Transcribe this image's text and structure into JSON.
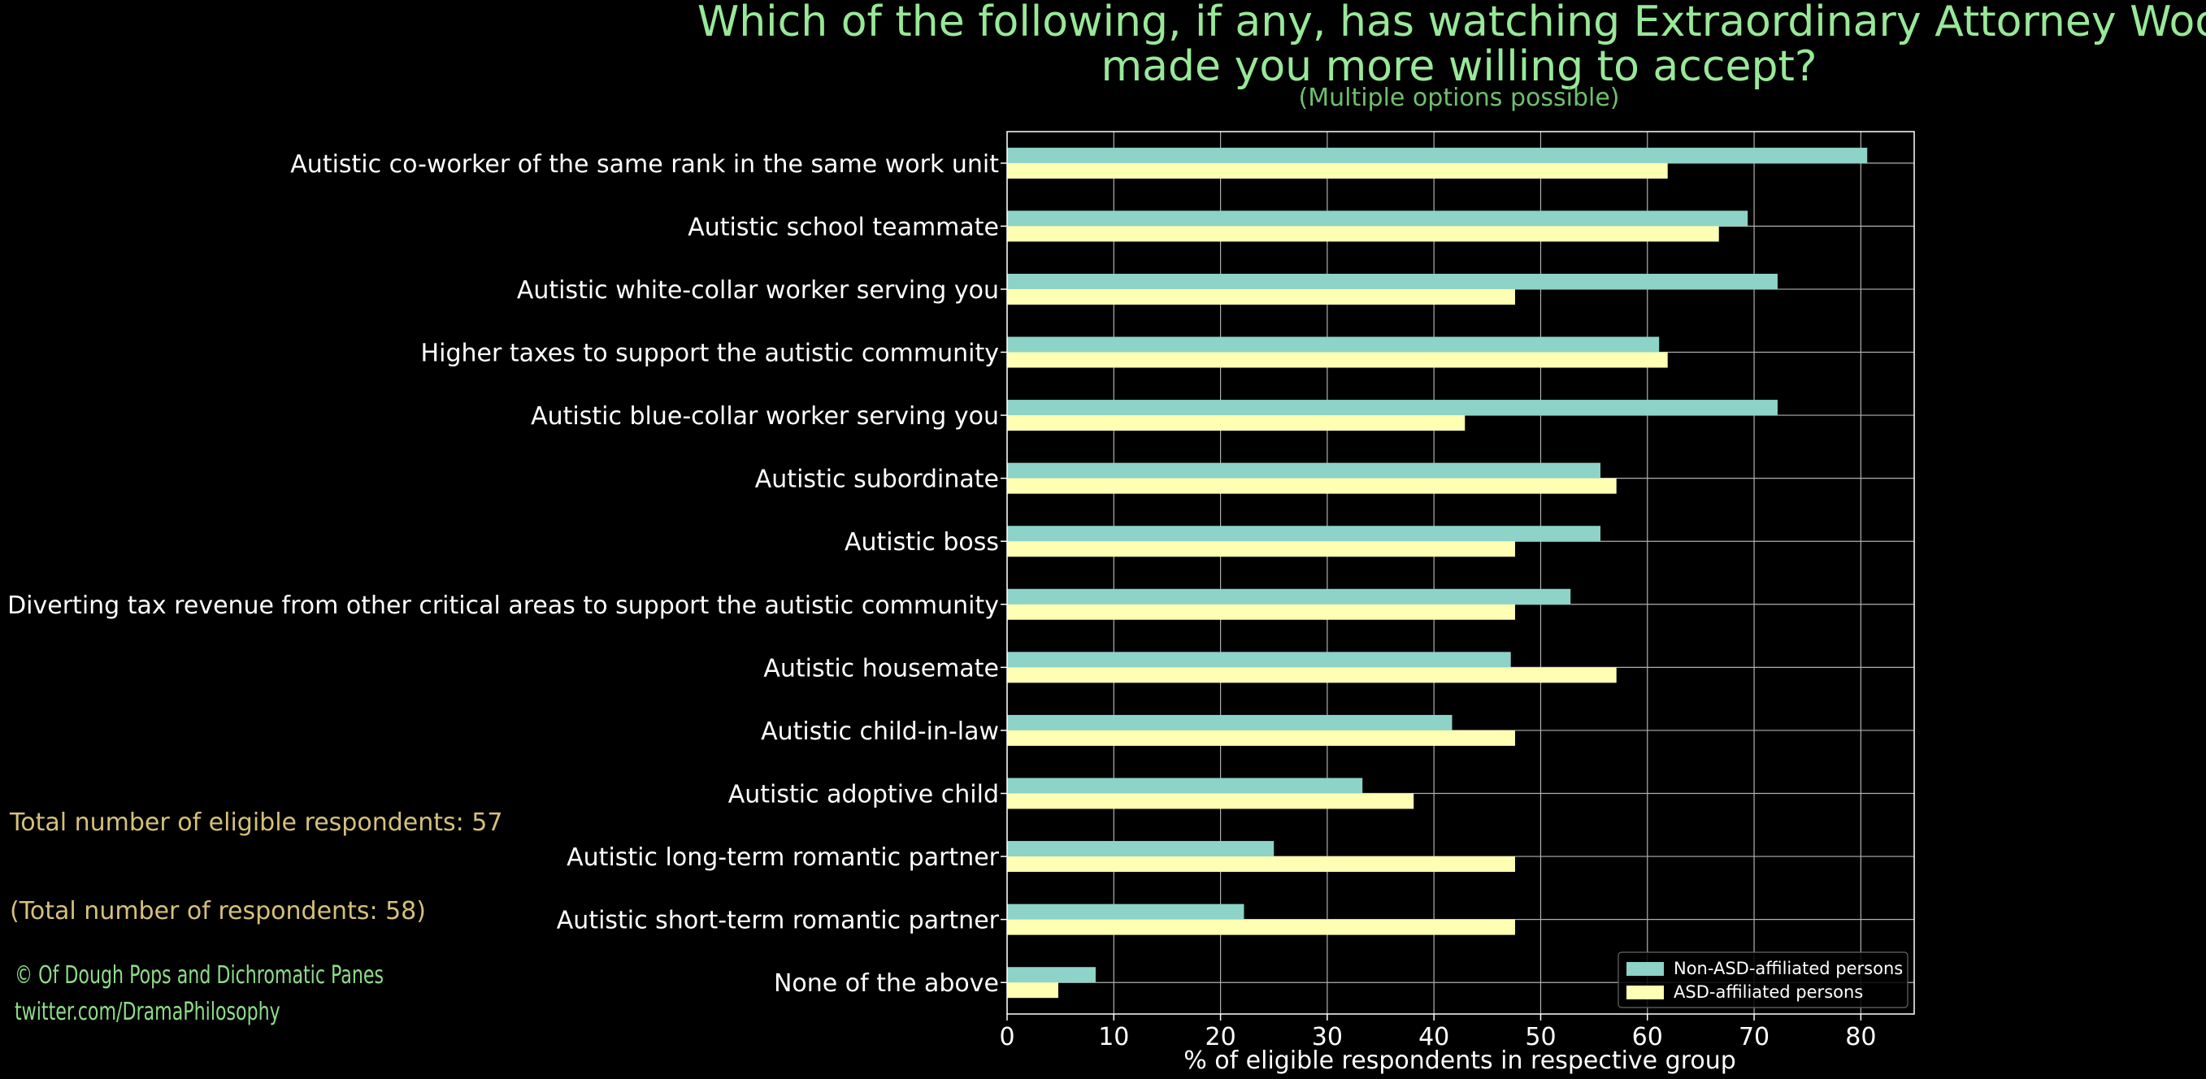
{
  "chart_data": {
    "type": "bar",
    "orientation": "horizontal",
    "title": "Which of the following, if any, has watching Extraordinary Attorney Woo made you more willing to accept?",
    "subtitle": "(Multiple options possible)",
    "xlabel": "% of eligible respondents in respective group",
    "ylabel": "",
    "xlim": [
      0,
      85
    ],
    "xticks": [
      0,
      10,
      20,
      30,
      40,
      50,
      60,
      70,
      80
    ],
    "grid": true,
    "legend_position": "bottom-right",
    "categories": [
      "Autistic co-worker of the same rank in the same work unit",
      "Autistic school teammate",
      "Autistic white-collar worker serving you",
      "Higher taxes to support the autistic community",
      "Autistic blue-collar worker serving you",
      "Autistic subordinate",
      "Autistic boss",
      "Diverting tax revenue from other critical areas to support the autistic community",
      "Autistic housemate",
      "Autistic child-in-law",
      "Autistic adoptive child",
      "Autistic long-term romantic partner",
      "Autistic short-term romantic partner",
      "None of the above"
    ],
    "series": [
      {
        "name": "Non-ASD-affiliated persons",
        "color": "#8dd3c7",
        "values": [
          80.6,
          69.4,
          72.2,
          61.1,
          72.2,
          55.6,
          55.6,
          52.8,
          47.2,
          41.7,
          33.3,
          25.0,
          22.2,
          8.3
        ]
      },
      {
        "name": "ASD-affiliated persons",
        "color": "#ffffb3",
        "values": [
          61.9,
          66.7,
          47.6,
          61.9,
          42.9,
          57.1,
          47.6,
          47.6,
          57.1,
          47.6,
          38.1,
          47.6,
          47.6,
          4.8
        ]
      }
    ]
  },
  "notes": {
    "eligible": "Total number of eligible respondents: 57",
    "total": "(Total number of respondents: 58)"
  },
  "credits": {
    "copyright": "© Of Dough Pops and Dichromatic Panes",
    "twitter": "twitter.com/DramaPhilosophy"
  },
  "colors": {
    "title": "#98e898",
    "subtitle": "#6fbf6f",
    "notes": "#d6c07a",
    "credits": "#8fdc8a",
    "grid": "#b0b0b0"
  }
}
